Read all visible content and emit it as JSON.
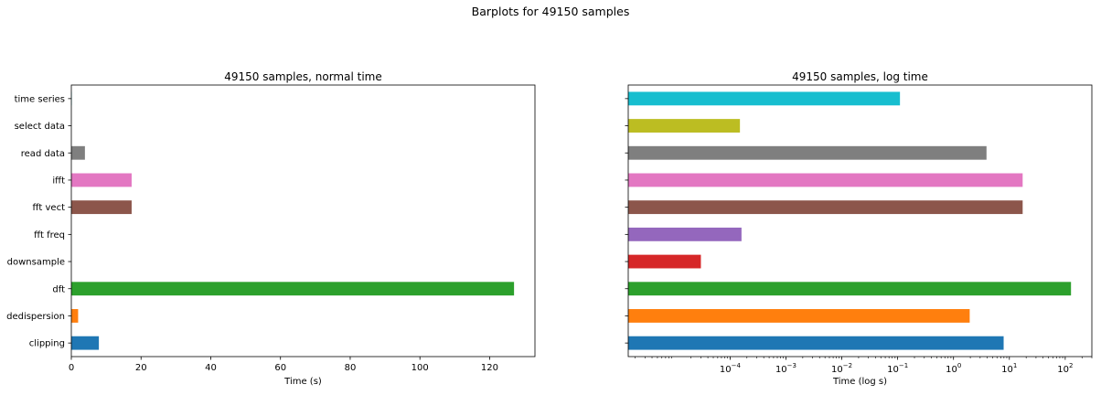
{
  "figure": {
    "suptitle": "Barplots for 49150 samples"
  },
  "chart_data": [
    {
      "type": "bar",
      "orientation": "horizontal",
      "title": "49150 samples, normal time",
      "xlabel": "Time (s)",
      "ylabel": "",
      "xscale": "linear",
      "xlim": [
        0,
        133
      ],
      "xticks": [
        0,
        20,
        40,
        60,
        80,
        100,
        120
      ],
      "xtick_labels": [
        "0",
        "20",
        "40",
        "60",
        "80",
        "100",
        "120"
      ],
      "grid": false,
      "categories": [
        "clipping",
        "dedispersion",
        "dft",
        "downsample",
        "fft freq",
        "fft vect",
        "ifft",
        "read data",
        "select data",
        "time series"
      ],
      "values": [
        7.9,
        1.95,
        127,
        3e-05,
        0.00016,
        17.3,
        17.3,
        3.9,
        0.00015,
        0.11
      ],
      "colors": [
        "#1f77b4",
        "#ff7f0e",
        "#2ca02c",
        "#d62728",
        "#9467bd",
        "#8c564b",
        "#e377c2",
        "#7f7f7f",
        "#bcbd22",
        "#17becf"
      ]
    },
    {
      "type": "bar",
      "orientation": "horizontal",
      "title": "49150 samples, log time",
      "xlabel": "Time (log s)",
      "ylabel": "",
      "xscale": "log",
      "xlim": [
        1.5e-06,
        300
      ],
      "xticks": [
        0.0001,
        0.001,
        0.01,
        0.1,
        1,
        10,
        100
      ],
      "xtick_labels": [
        [
          "10",
          "−4"
        ],
        [
          "10",
          "−3"
        ],
        [
          "10",
          "−2"
        ],
        [
          "10",
          "−1"
        ],
        [
          "10",
          "0"
        ],
        [
          "10",
          "1"
        ],
        [
          "10",
          "2"
        ]
      ],
      "grid": false,
      "categories": [
        "clipping",
        "dedispersion",
        "dft",
        "downsample",
        "fft freq",
        "fft vect",
        "ifft",
        "read data",
        "select data",
        "time series"
      ],
      "values": [
        7.9,
        1.95,
        127,
        3e-05,
        0.00016,
        17.3,
        17.3,
        3.9,
        0.00015,
        0.11
      ],
      "colors": [
        "#1f77b4",
        "#ff7f0e",
        "#2ca02c",
        "#d62728",
        "#9467bd",
        "#8c564b",
        "#e377c2",
        "#7f7f7f",
        "#bcbd22",
        "#17becf"
      ],
      "show_ytick_labels": false
    }
  ]
}
